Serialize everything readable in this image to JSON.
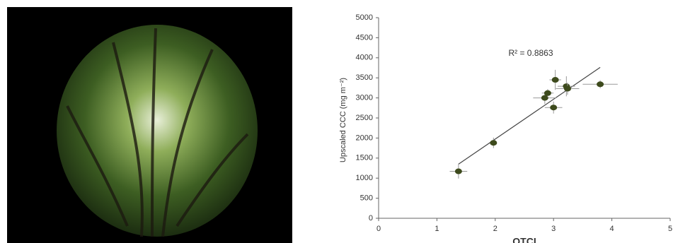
{
  "chart_data": {
    "type": "scatter",
    "y_label": "Upscaled CCC (mg m⁻²)",
    "x_label": "OTCI",
    "annotation": "R² = 0.8863",
    "x": [
      1.37,
      1.97,
      2.85,
      2.9,
      3.0,
      3.03,
      3.22,
      3.24,
      3.8
    ],
    "values": [
      1170,
      1880,
      3000,
      3120,
      2760,
      3450,
      3290,
      3230,
      3340
    ],
    "x_errors": [
      0.15,
      0.05,
      0.2,
      0.1,
      0.15,
      0.1,
      0.15,
      0.2,
      0.3
    ],
    "y_errors": [
      180,
      130,
      150,
      100,
      150,
      250,
      250,
      150,
      100
    ],
    "color": "#3d4a1c",
    "trendline": {
      "x": [
        1.37,
        3.8
      ],
      "values": [
        1350,
        3760
      ]
    },
    "xlim": [
      0,
      5
    ],
    "xticks": [
      0,
      1,
      2,
      3,
      4,
      5
    ],
    "ylim": [
      0,
      5000
    ],
    "yticks": [
      0,
      500,
      1000,
      1500,
      2000,
      2500,
      3000,
      3500,
      4000,
      4500,
      5000
    ]
  }
}
